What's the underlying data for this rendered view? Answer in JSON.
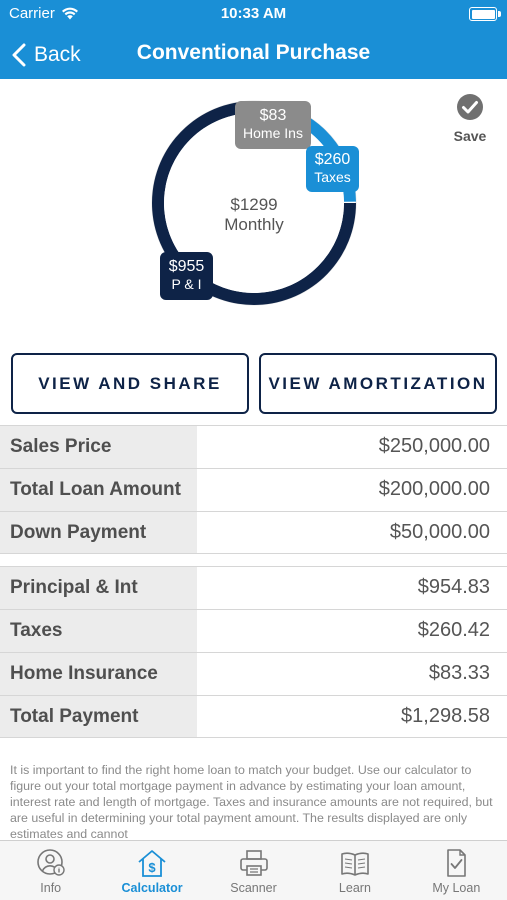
{
  "status_bar": {
    "carrier": "Carrier",
    "time": "10:33 AM"
  },
  "nav": {
    "back_label": "Back",
    "title": "Conventional Purchase"
  },
  "chart": {
    "center_amount": "$1299",
    "center_label": "Monthly",
    "segments": [
      {
        "amount": "$955",
        "label": "P & I",
        "value": 954.83,
        "color": "#0e2347"
      },
      {
        "amount": "$260",
        "label": "Taxes",
        "value": 260.42,
        "color": "#1a8fd6"
      },
      {
        "amount": "$83",
        "label": "Home Ins",
        "value": 83.33,
        "color": "#8b8b8b"
      }
    ]
  },
  "save_label": "Save",
  "buttons": {
    "view_share": "VIEW AND SHARE",
    "view_amortization": "VIEW AMORTIZATION"
  },
  "loan_table": [
    {
      "label": "Sales Price",
      "value": "$250,000.00"
    },
    {
      "label": "Total Loan Amount",
      "value": "$200,000.00"
    },
    {
      "label": "Down Payment",
      "value": "$50,000.00"
    }
  ],
  "payment_table": [
    {
      "label": "Principal & Int",
      "value": "$954.83"
    },
    {
      "label": "Taxes",
      "value": "$260.42"
    },
    {
      "label": "Home Insurance",
      "value": "$83.33"
    },
    {
      "label": "Total Payment",
      "value": "$1,298.58"
    }
  ],
  "disclaimer": "It is important to find the right home loan to match your budget. Use our calculator to figure out your total mortgage payment in advance by estimating your loan amount, interest rate and length of mortgage. Taxes and insurance amounts are not required, but are useful in determining your total payment amount.  The results displayed are only estimates and cannot",
  "tabs": [
    {
      "label": "Info",
      "icon": "info-person-icon",
      "active": false
    },
    {
      "label": "Calculator",
      "icon": "calculator-house-icon",
      "active": true
    },
    {
      "label": "Scanner",
      "icon": "printer-icon",
      "active": false
    },
    {
      "label": "Learn",
      "icon": "book-icon",
      "active": false
    },
    {
      "label": "My Loan",
      "icon": "document-check-icon",
      "active": false
    }
  ],
  "colors": {
    "brand_blue": "#1a8fd6",
    "navy": "#0e2347",
    "gray": "#8b8b8b"
  }
}
